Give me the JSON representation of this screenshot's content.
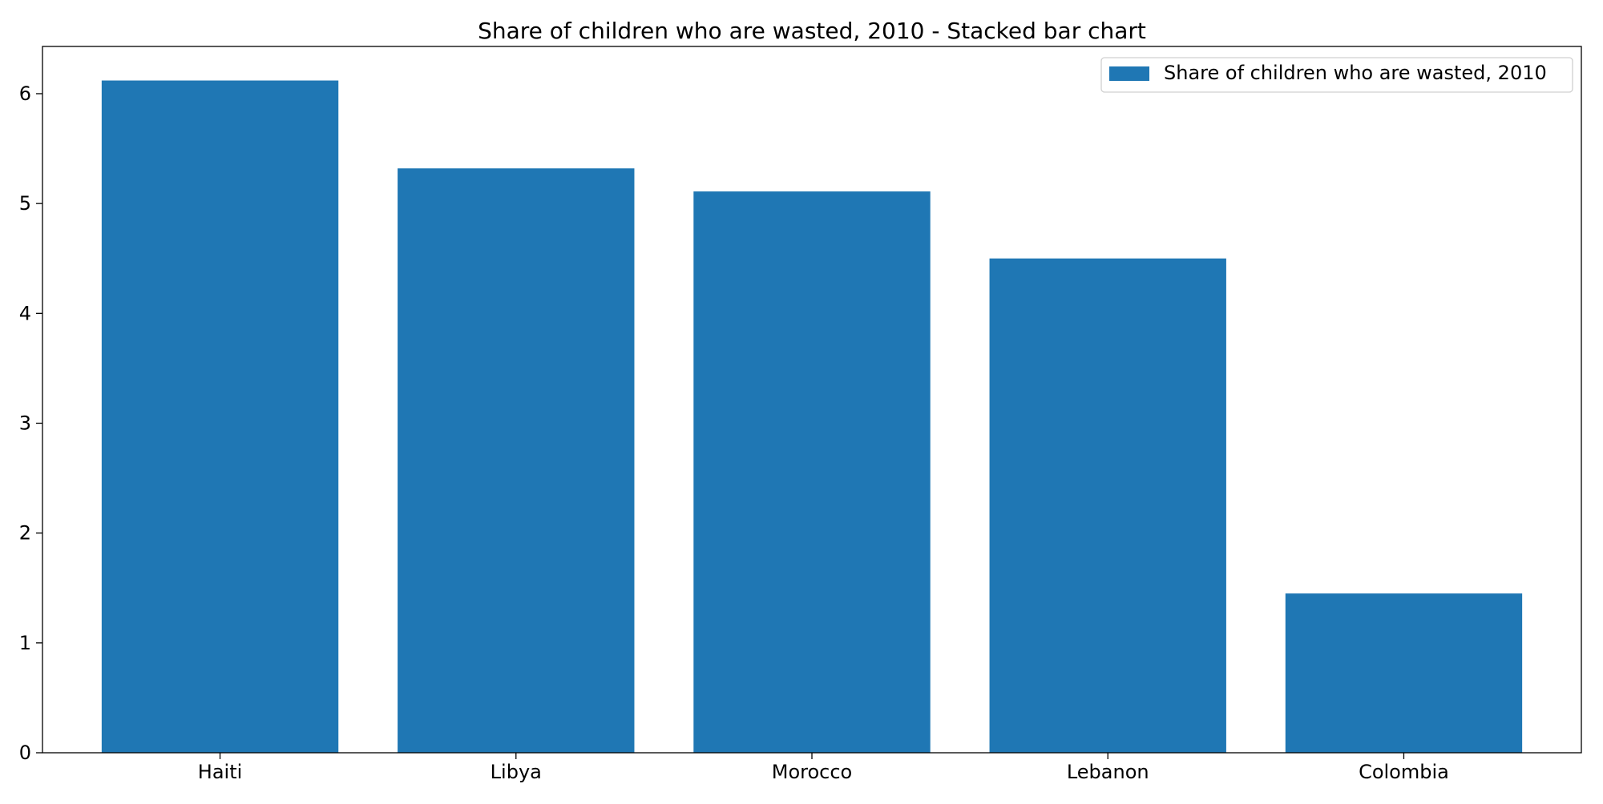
{
  "chart_data": {
    "type": "bar",
    "title": "Share of children who are wasted, 2010 - Stacked bar chart",
    "xlabel": "",
    "ylabel": "",
    "categories": [
      "Haiti",
      "Libya",
      "Morocco",
      "Lebanon",
      "Colombia"
    ],
    "series": [
      {
        "name": "Share of children who are wasted, 2010",
        "values": [
          6.12,
          5.32,
          5.11,
          4.5,
          1.45
        ],
        "color": "#1f77b4"
      }
    ],
    "ylim": [
      0,
      6.43
    ],
    "yticks": [
      "0",
      "1",
      "2",
      "3",
      "4",
      "5",
      "6"
    ],
    "grid": false,
    "legend_position": "top-right"
  }
}
